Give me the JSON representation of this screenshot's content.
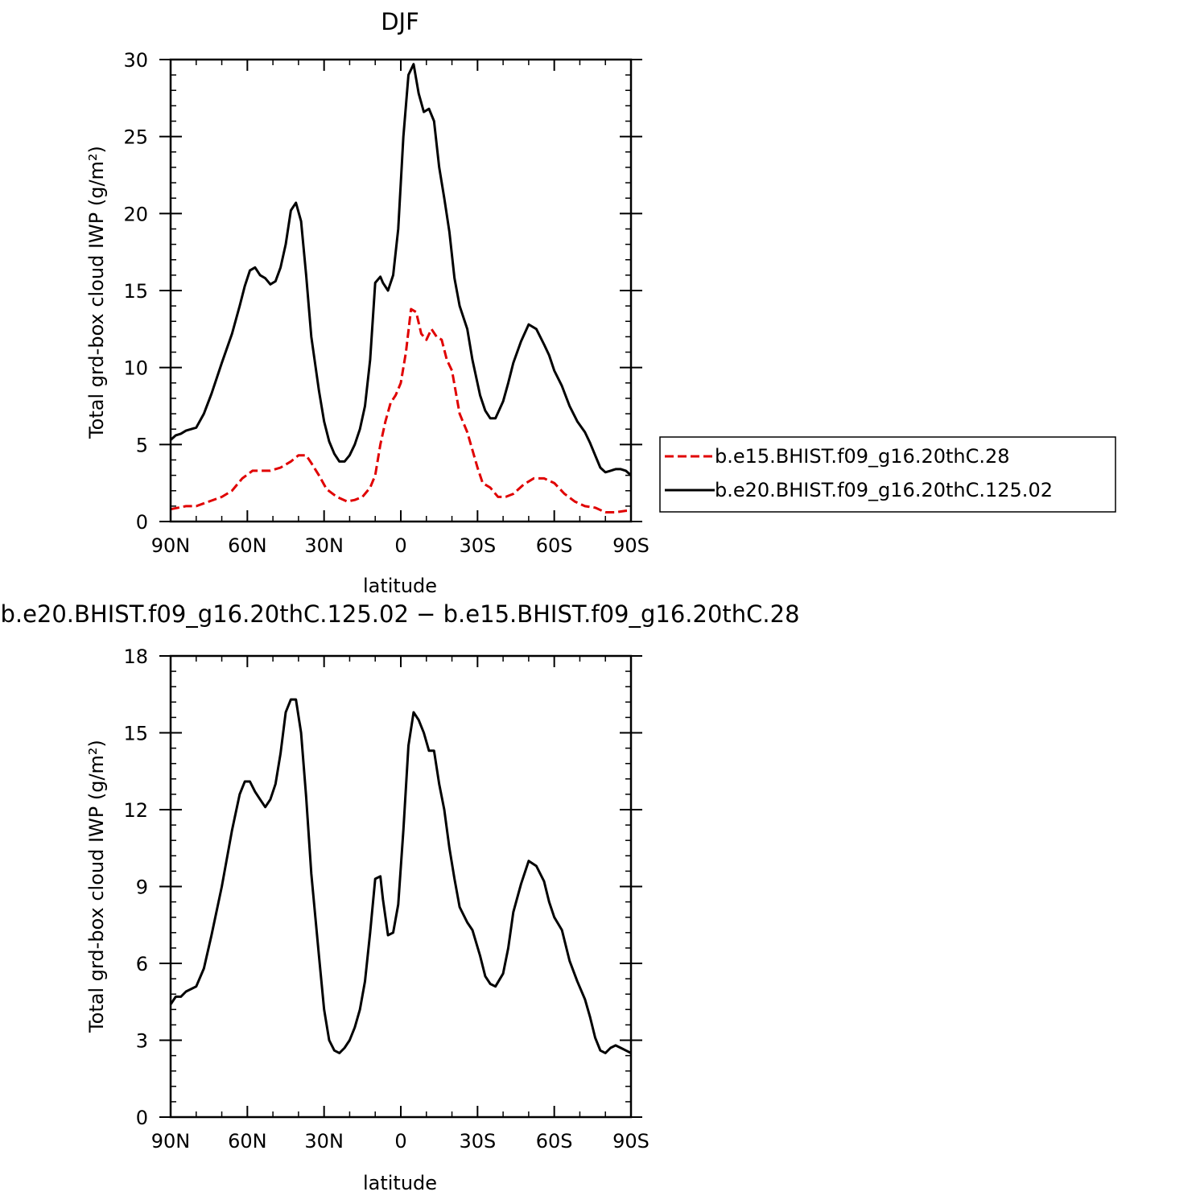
{
  "chart_data": [
    {
      "type": "line",
      "title": "DJF",
      "xlabel": "latitude",
      "ylabel": "Total grd-box cloud IWP (g/m²)",
      "xticks": [
        {
          "value": -90,
          "label": "90N"
        },
        {
          "value": -60,
          "label": "60N"
        },
        {
          "value": -30,
          "label": "30N"
        },
        {
          "value": 0,
          "label": "0"
        },
        {
          "value": 30,
          "label": "30S"
        },
        {
          "value": 60,
          "label": "60S"
        },
        {
          "value": 90,
          "label": "90S"
        }
      ],
      "yticks": [
        0,
        5,
        10,
        15,
        20,
        25,
        30
      ],
      "ylim": [
        0,
        30
      ],
      "xlim": [
        -90,
        90
      ],
      "legend_position": "right",
      "series": [
        {
          "name": "b.e15.BHIST.f09_g16.20thC.28",
          "color": "#e00000",
          "style": "dashed",
          "x": [
            -90,
            -87,
            -84,
            -80,
            -75,
            -70,
            -66,
            -62,
            -58,
            -55,
            -51,
            -47,
            -43,
            -40,
            -37,
            -35,
            -32,
            -29,
            -25,
            -21,
            -18,
            -15,
            -12,
            -10,
            -8,
            -6,
            -4,
            -2,
            0,
            2,
            4,
            6,
            8,
            10,
            12,
            14,
            16,
            18,
            20,
            23,
            26,
            30,
            32,
            35,
            38,
            41,
            44,
            48,
            52,
            56,
            60,
            64,
            68,
            72,
            76,
            80,
            84,
            88,
            90
          ],
          "y": [
            0.8,
            0.9,
            1.0,
            1.0,
            1.3,
            1.6,
            2.0,
            2.8,
            3.3,
            3.3,
            3.3,
            3.5,
            3.9,
            4.3,
            4.3,
            3.8,
            3.0,
            2.1,
            1.6,
            1.3,
            1.4,
            1.6,
            2.2,
            3.0,
            5.0,
            6.5,
            7.7,
            8.2,
            9.0,
            11.0,
            13.8,
            13.6,
            12.2,
            11.8,
            12.5,
            12.0,
            11.8,
            10.5,
            9.8,
            7.0,
            5.8,
            3.5,
            2.5,
            2.2,
            1.6,
            1.6,
            1.8,
            2.4,
            2.8,
            2.8,
            2.5,
            1.8,
            1.3,
            1.0,
            0.9,
            0.6,
            0.6,
            0.7,
            0.7
          ]
        },
        {
          "name": "b.e20.BHIST.f09_g16.20thC.125.02",
          "color": "#000000",
          "style": "solid",
          "x": [
            -90,
            -88,
            -86,
            -84,
            -80,
            -77,
            -74,
            -70,
            -66,
            -63,
            -61,
            -59,
            -57,
            -55,
            -53,
            -51,
            -49,
            -47,
            -45,
            -43,
            -41,
            -39,
            -37,
            -35,
            -32,
            -30,
            -28,
            -26,
            -24,
            -22,
            -20,
            -18,
            -16,
            -14,
            -12,
            -10,
            -8,
            -7,
            -5,
            -3,
            -1,
            1,
            3,
            5,
            7,
            9,
            11,
            13,
            15,
            17,
            19,
            21,
            23,
            26,
            28,
            31,
            33,
            35,
            37,
            40,
            42,
            44,
            47,
            50,
            53,
            56,
            58,
            60,
            63,
            66,
            69,
            72,
            74,
            76,
            78,
            80,
            82,
            84,
            86,
            88,
            90
          ],
          "y": [
            5.3,
            5.6,
            5.7,
            5.9,
            6.1,
            7.0,
            8.3,
            10.3,
            12.2,
            14.0,
            15.3,
            16.3,
            16.5,
            16.0,
            15.8,
            15.4,
            15.6,
            16.5,
            18.0,
            20.2,
            20.7,
            19.5,
            16.0,
            12.0,
            8.5,
            6.5,
            5.2,
            4.4,
            3.9,
            3.9,
            4.3,
            5.0,
            6.0,
            7.5,
            10.5,
            15.5,
            15.9,
            15.5,
            15.0,
            16.0,
            19.0,
            25.0,
            29.0,
            29.7,
            27.8,
            26.6,
            26.8,
            26.0,
            23.0,
            21.0,
            18.8,
            15.8,
            14.0,
            12.5,
            10.5,
            8.2,
            7.2,
            6.7,
            6.7,
            7.8,
            9.0,
            10.3,
            11.7,
            12.8,
            12.5,
            11.5,
            10.8,
            9.8,
            8.8,
            7.5,
            6.5,
            5.8,
            5.1,
            4.3,
            3.5,
            3.2,
            3.3,
            3.4,
            3.4,
            3.3,
            3.0
          ]
        }
      ]
    },
    {
      "type": "line",
      "title": "b.e20.BHIST.f09_g16.20thC.125.02 − b.e15.BHIST.f09_g16.20thC.28",
      "xlabel": "latitude",
      "ylabel": "Total grd-box cloud IWP (g/m²)",
      "xticks": [
        {
          "value": -90,
          "label": "90N"
        },
        {
          "value": -60,
          "label": "60N"
        },
        {
          "value": -30,
          "label": "30N"
        },
        {
          "value": 0,
          "label": "0"
        },
        {
          "value": 30,
          "label": "30S"
        },
        {
          "value": 60,
          "label": "60S"
        },
        {
          "value": 90,
          "label": "90S"
        }
      ],
      "yticks": [
        0,
        3,
        6,
        9,
        12,
        15,
        18
      ],
      "ylim": [
        0,
        18
      ],
      "xlim": [
        -90,
        90
      ],
      "series": [
        {
          "color": "#000000",
          "style": "solid",
          "x": [
            -90,
            -88,
            -86,
            -84,
            -80,
            -77,
            -74,
            -70,
            -66,
            -63,
            -61,
            -59,
            -57,
            -55,
            -53,
            -51,
            -49,
            -47,
            -45,
            -43,
            -41,
            -39,
            -37,
            -35,
            -32,
            -30,
            -28,
            -26,
            -24,
            -22,
            -20,
            -18,
            -16,
            -14,
            -12,
            -10,
            -8,
            -7,
            -5,
            -3,
            -1,
            1,
            3,
            5,
            7,
            9,
            11,
            13,
            15,
            17,
            19,
            21,
            23,
            26,
            28,
            31,
            33,
            35,
            37,
            40,
            42,
            44,
            47,
            50,
            53,
            56,
            58,
            60,
            63,
            66,
            69,
            72,
            74,
            76,
            78,
            80,
            82,
            84,
            86,
            88,
            90
          ],
          "y": [
            4.4,
            4.7,
            4.7,
            4.9,
            5.1,
            5.8,
            7.1,
            9.0,
            11.2,
            12.6,
            13.1,
            13.1,
            12.7,
            12.4,
            12.1,
            12.4,
            13.0,
            14.2,
            15.8,
            16.3,
            16.3,
            15.0,
            12.5,
            9.5,
            6.3,
            4.2,
            3.0,
            2.6,
            2.5,
            2.7,
            3.0,
            3.5,
            4.2,
            5.3,
            7.2,
            9.3,
            9.4,
            8.5,
            7.1,
            7.2,
            8.3,
            11.2,
            14.5,
            15.8,
            15.5,
            15.0,
            14.3,
            14.3,
            13.0,
            12.0,
            10.5,
            9.3,
            8.2,
            7.6,
            7.3,
            6.3,
            5.5,
            5.2,
            5.1,
            5.6,
            6.6,
            8.0,
            9.1,
            10.0,
            9.8,
            9.2,
            8.4,
            7.8,
            7.3,
            6.1,
            5.3,
            4.6,
            3.9,
            3.1,
            2.6,
            2.5,
            2.7,
            2.8,
            2.7,
            2.6,
            2.5
          ]
        }
      ]
    }
  ]
}
